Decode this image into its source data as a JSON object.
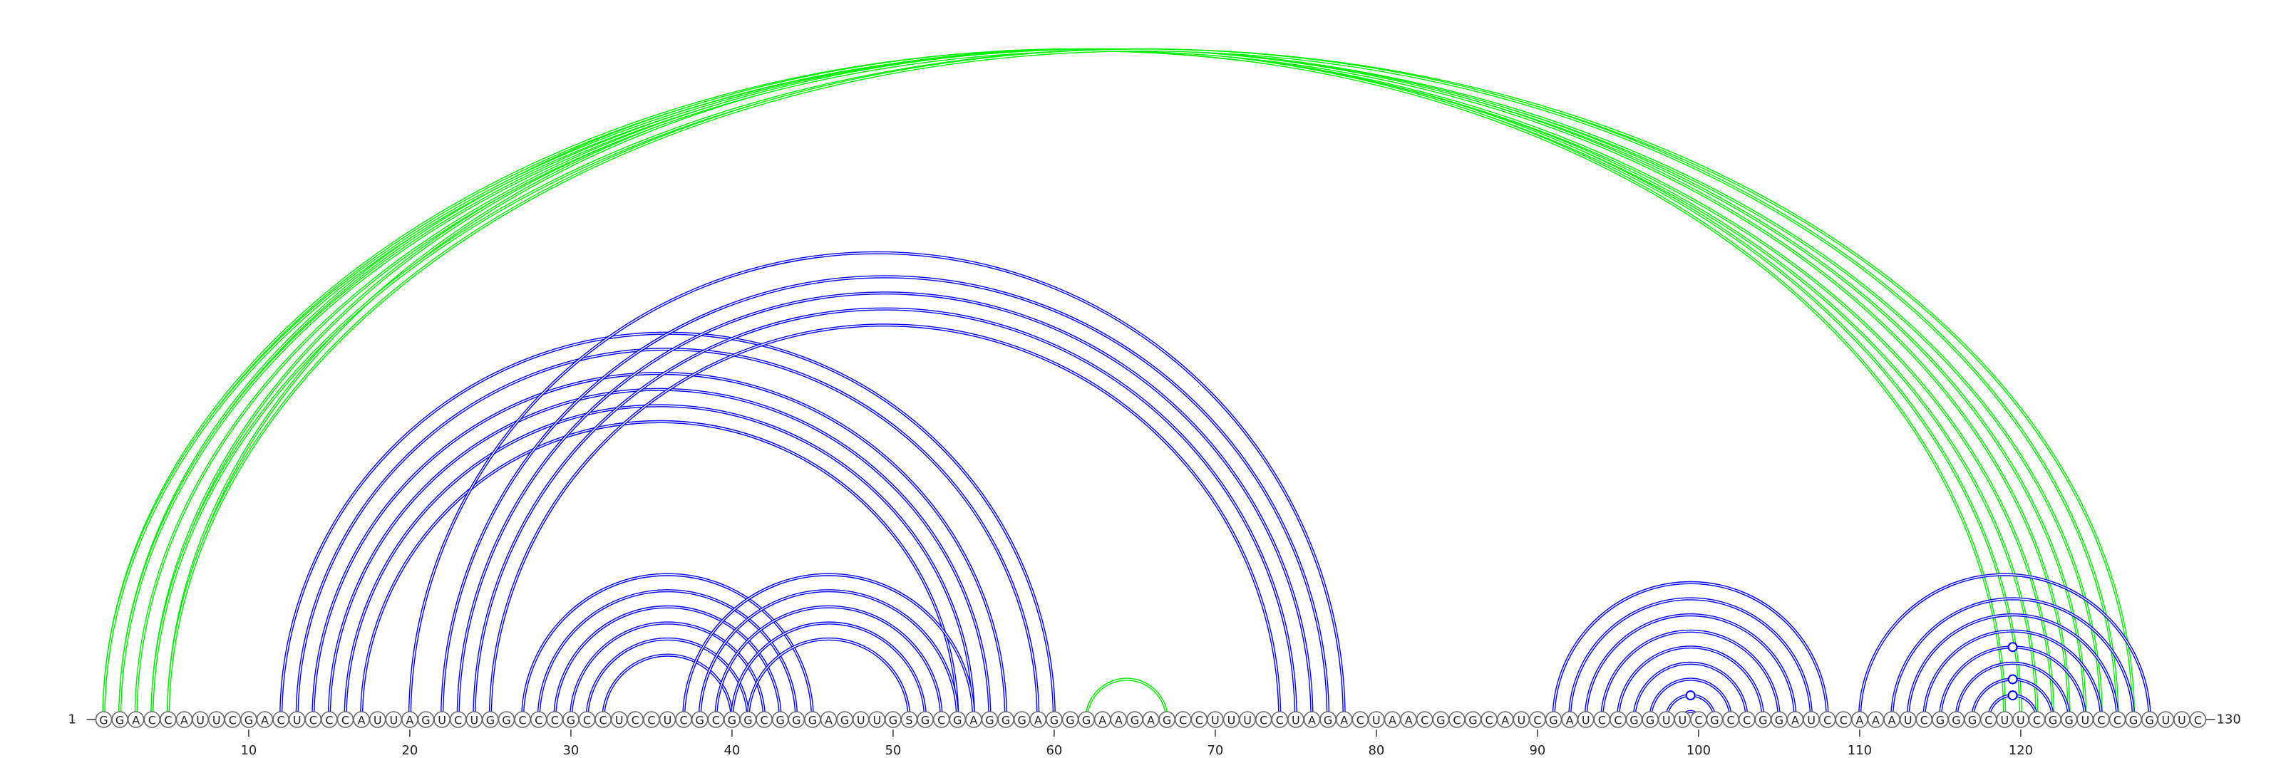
{
  "sequence": "GGACCAUUCGACUCCCAUUAGUCUGGCCCGCCUCCUCGCGGCGGGAGUUGSGCGAGGGAGGGAAGAGCCUUUCCUAGACUAACGCGCAUCGAUCCGGUUCGCCGGAUCCAAAUCGGGCUUCGGUCCGGUUC",
  "start_label": "1",
  "end_label": "130",
  "tick_labels": [
    "10",
    "20",
    "30",
    "40",
    "50",
    "60",
    "70",
    "80",
    "90",
    "100",
    "110",
    "120"
  ],
  "colors": {
    "pair_primary": "#0000ee",
    "pair_secondary": "#00ee00",
    "backbone": "#333333"
  },
  "arc_groups": [
    {
      "color": "pair_secondary",
      "pairs": [
        [
          1,
          122
        ],
        [
          2,
          121
        ],
        [
          4,
          120
        ],
        [
          5,
          119
        ],
        [
          1,
          125
        ],
        [
          2,
          124
        ],
        [
          3,
          123
        ],
        [
          4,
          127
        ],
        [
          5,
          126
        ]
      ],
      "marked": []
    },
    {
      "color": "pair_secondary",
      "pairs": [
        [
          62,
          67
        ]
      ],
      "marked": []
    },
    {
      "color": "pair_primary",
      "pairs": [
        [
          12,
          60
        ],
        [
          13,
          59
        ],
        [
          14,
          57
        ],
        [
          15,
          56
        ],
        [
          16,
          55
        ],
        [
          17,
          54
        ]
      ],
      "marked": []
    },
    {
      "color": "pair_primary",
      "pairs": [
        [
          20,
          78
        ],
        [
          22,
          77
        ],
        [
          23,
          76
        ],
        [
          24,
          75
        ],
        [
          25,
          74
        ]
      ],
      "marked": []
    },
    {
      "color": "pair_primary",
      "pairs": [
        [
          27,
          45
        ],
        [
          28,
          44
        ],
        [
          29,
          43
        ],
        [
          30,
          42
        ],
        [
          31,
          41
        ],
        [
          32,
          40
        ]
      ],
      "marked": []
    },
    {
      "color": "pair_primary",
      "pairs": [
        [
          37,
          55
        ],
        [
          38,
          54
        ],
        [
          39,
          53
        ],
        [
          40,
          52
        ],
        [
          41,
          51
        ]
      ],
      "marked": []
    },
    {
      "color": "pair_primary",
      "pairs": [
        [
          91,
          108
        ],
        [
          92,
          107
        ],
        [
          93,
          106
        ],
        [
          94,
          105
        ],
        [
          95,
          104
        ],
        [
          96,
          103
        ],
        [
          97,
          102
        ],
        [
          98,
          101
        ],
        [
          99,
          100
        ]
      ],
      "marked": [
        [
          98,
          101
        ]
      ]
    },
    {
      "color": "pair_primary",
      "pairs": [
        [
          110,
          128
        ],
        [
          112,
          127
        ],
        [
          113,
          126
        ],
        [
          114,
          125
        ],
        [
          115,
          124
        ],
        [
          116,
          123
        ],
        [
          117,
          122
        ],
        [
          118,
          121
        ]
      ],
      "marked": [
        [
          115,
          124
        ],
        [
          117,
          122
        ],
        [
          118,
          121
        ]
      ]
    }
  ]
}
